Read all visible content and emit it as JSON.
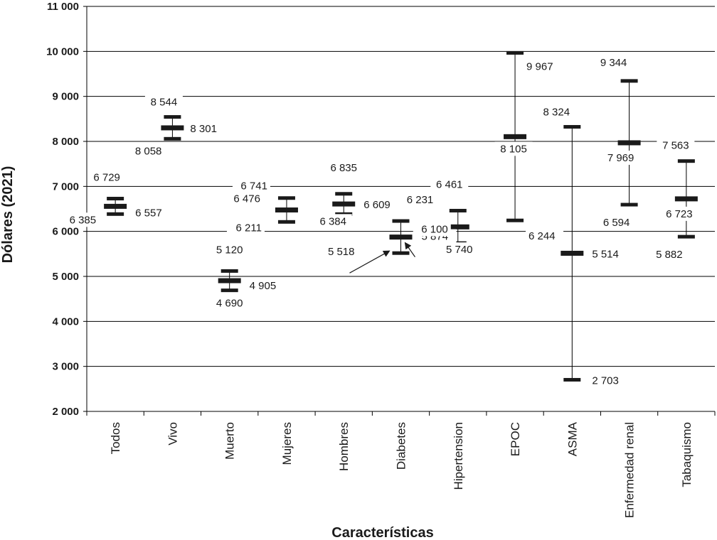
{
  "chart_data": {
    "type": "errorbar",
    "title": "",
    "xlabel": "Características",
    "ylabel": "Dólares (2021)",
    "ylim": [
      2000,
      11000
    ],
    "yticks": [
      2000,
      3000,
      4000,
      5000,
      6000,
      7000,
      8000,
      9000,
      10000,
      11000
    ],
    "ytick_labels": [
      "2 000",
      "3 000",
      "4 000",
      "5 000",
      "6 000",
      "7 000",
      "8 000",
      "9 000",
      "10 000",
      "11 000"
    ],
    "grid": true,
    "categories": [
      "Todos",
      "Vivo",
      "Muerto",
      "Mujeres",
      "Hombres",
      "Diabetes",
      "Hipertension",
      "EPOC",
      "ASMA",
      "Enfermedad renal",
      "Tabaquismo"
    ],
    "series": [
      {
        "name": "upper",
        "values": [
          6729,
          8544,
          5120,
          6741,
          6835,
          6231,
          6461,
          9967,
          8324,
          9344,
          7563
        ]
      },
      {
        "name": "mean",
        "values": [
          6557,
          8301,
          4905,
          6476,
          6609,
          5874,
          6100,
          8105,
          5514,
          7969,
          6723
        ]
      },
      {
        "name": "lower",
        "values": [
          6385,
          8058,
          4690,
          6211,
          6384,
          5518,
          5740,
          6244,
          2703,
          6594,
          5882
        ]
      }
    ],
    "upper_labels": [
      "6 729",
      "8 544",
      "5 120",
      "6 741",
      "6 835",
      "6 231",
      "6 461",
      "9 967",
      "8 324",
      "9 344",
      "7 563"
    ],
    "mean_labels": [
      "6 557",
      "8 301",
      "4 905",
      "6 476",
      "6 609",
      "5 874",
      "6 100",
      "8 105",
      "5 514",
      "7 969",
      "6 723"
    ],
    "lower_labels": [
      "6 385",
      "8 058",
      "4 690",
      "6 211",
      "6 384",
      "5 518",
      "5 740",
      "6 244",
      "2 703",
      "6 594",
      "5 882"
    ]
  }
}
